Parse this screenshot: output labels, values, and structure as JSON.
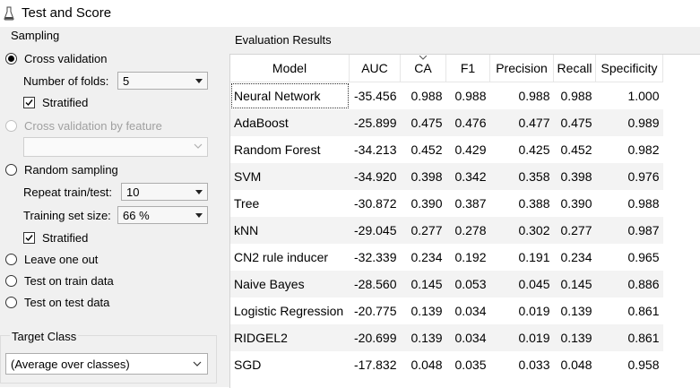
{
  "window": {
    "title": "Test and Score"
  },
  "sampling": {
    "group_title": "Sampling",
    "cross_validation": {
      "label": "Cross validation",
      "checked": true
    },
    "folds": {
      "label": "Number of folds:",
      "value": "5"
    },
    "stratified_1": {
      "label": "Stratified",
      "checked": true
    },
    "cv_by_feature": {
      "label": "Cross validation by feature",
      "enabled": false,
      "value": ""
    },
    "random_sampling": {
      "label": "Random sampling",
      "checked": false
    },
    "repeat": {
      "label": "Repeat train/test:",
      "value": "10"
    },
    "training_size": {
      "label": "Training set size:",
      "value": "66 %"
    },
    "stratified_2": {
      "label": "Stratified",
      "checked": true
    },
    "leave_one_out": {
      "label": "Leave one out"
    },
    "test_on_train": {
      "label": "Test on train data"
    },
    "test_on_test": {
      "label": "Test on test data"
    }
  },
  "target_class": {
    "group_title": "Target Class",
    "value": "(Average over classes)"
  },
  "evaluation": {
    "title": "Evaluation Results",
    "columns": [
      "Model",
      "AUC",
      "CA",
      "F1",
      "Precision",
      "Recall",
      "Specificity"
    ],
    "sorted_column": "CA",
    "rows": [
      [
        "Neural Network",
        "-35.456",
        "0.988",
        "0.988",
        "0.988",
        "0.988",
        "1.000"
      ],
      [
        "AdaBoost",
        "-25.899",
        "0.475",
        "0.476",
        "0.477",
        "0.475",
        "0.989"
      ],
      [
        "Random Forest",
        "-34.213",
        "0.452",
        "0.429",
        "0.425",
        "0.452",
        "0.982"
      ],
      [
        "SVM",
        "-34.920",
        "0.398",
        "0.342",
        "0.358",
        "0.398",
        "0.976"
      ],
      [
        "Tree",
        "-30.872",
        "0.390",
        "0.387",
        "0.388",
        "0.390",
        "0.988"
      ],
      [
        "kNN",
        "-29.045",
        "0.277",
        "0.278",
        "0.302",
        "0.277",
        "0.987"
      ],
      [
        "CN2 rule inducer",
        "-32.339",
        "0.234",
        "0.192",
        "0.191",
        "0.234",
        "0.965"
      ],
      [
        "Naive Bayes",
        "-28.560",
        "0.145",
        "0.053",
        "0.045",
        "0.145",
        "0.886"
      ],
      [
        "Logistic Regression",
        "-20.775",
        "0.139",
        "0.034",
        "0.019",
        "0.139",
        "0.861"
      ],
      [
        "RIDGEL2",
        "-20.699",
        "0.139",
        "0.034",
        "0.019",
        "0.139",
        "0.861"
      ],
      [
        "SGD",
        "-17.832",
        "0.048",
        "0.035",
        "0.033",
        "0.048",
        "0.958"
      ]
    ]
  }
}
